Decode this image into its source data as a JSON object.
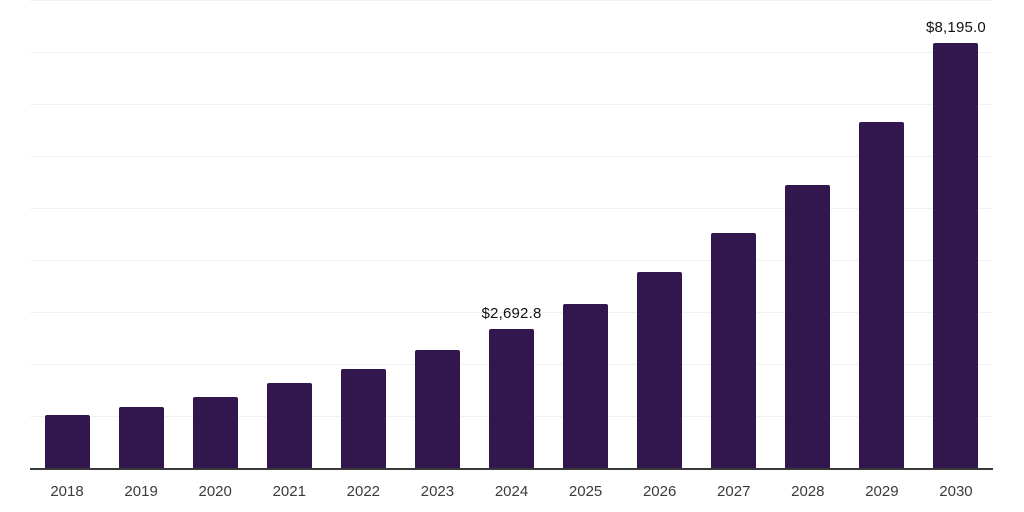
{
  "chart_data": {
    "type": "bar",
    "title": "",
    "xlabel": "",
    "ylabel": "",
    "categories": [
      "2018",
      "2019",
      "2020",
      "2021",
      "2022",
      "2023",
      "2024",
      "2025",
      "2026",
      "2027",
      "2028",
      "2029",
      "2030"
    ],
    "values": [
      1040,
      1190,
      1395,
      1655,
      1925,
      2280,
      2692.8,
      3165,
      3780,
      4530,
      5470,
      6665,
      8195
    ],
    "value_labels": [
      "",
      "",
      "",
      "",
      "",
      "",
      "$2,692.8",
      "",
      "",
      "",
      "",
      "",
      "$8,195.0"
    ],
    "ylim": [
      0,
      9000
    ],
    "gridline_step": 1000,
    "grid": "horizontal",
    "legend": "none",
    "colors": {
      "bar": "#32164e",
      "axis_line": "#383838",
      "gridline": "#f1f1f1",
      "value_label": "#111111",
      "tick_label": "#3b3b3b",
      "background": "#ffffff"
    }
  }
}
